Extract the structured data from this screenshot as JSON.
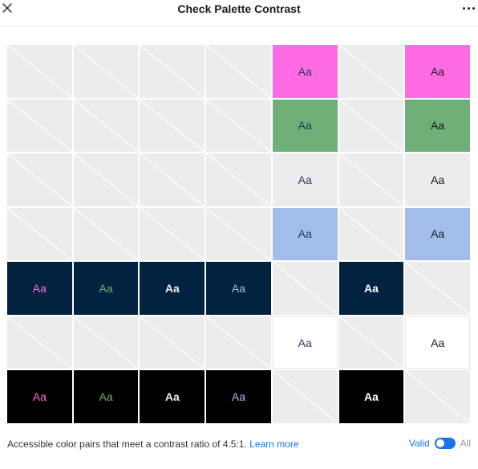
{
  "header": {
    "title": "Check Palette Contrast",
    "close_icon": "close-icon",
    "more_icon": "more-horizontal-icon"
  },
  "grid": {
    "sample_text": "Aa",
    "rows": [
      [
        {
          "empty": true
        },
        {
          "empty": true
        },
        {
          "empty": true
        },
        {
          "empty": true
        },
        {
          "bg": "#ff6be3",
          "fg": "#1e3a5f",
          "text": "Aa"
        },
        {
          "empty": true
        },
        {
          "bg": "#ff6be3",
          "fg": "#1a1a1a",
          "text": "Aa"
        }
      ],
      [
        {
          "empty": true
        },
        {
          "empty": true
        },
        {
          "empty": true
        },
        {
          "empty": true
        },
        {
          "bg": "#6eb077",
          "fg": "#1e3a5f",
          "text": "Aa"
        },
        {
          "empty": true
        },
        {
          "bg": "#6eb077",
          "fg": "#1a1a1a",
          "text": "Aa"
        }
      ],
      [
        {
          "empty": true
        },
        {
          "empty": true
        },
        {
          "empty": true
        },
        {
          "empty": true
        },
        {
          "bg": "#ececec",
          "fg": "#1e3a5f",
          "text": "Aa"
        },
        {
          "empty": true
        },
        {
          "bg": "#ececec",
          "fg": "#1a1a1a",
          "text": "Aa"
        }
      ],
      [
        {
          "empty": true
        },
        {
          "empty": true
        },
        {
          "empty": true
        },
        {
          "empty": true
        },
        {
          "bg": "#a2bdec",
          "fg": "#1e3a5f",
          "text": "Aa"
        },
        {
          "empty": true
        },
        {
          "bg": "#a2bdec",
          "fg": "#1a1a1a",
          "text": "Aa"
        }
      ],
      [
        {
          "bg": "#01233f",
          "fg": "#ff6be3",
          "text": "Aa"
        },
        {
          "bg": "#01233f",
          "fg": "#6eb077",
          "text": "Aa"
        },
        {
          "bg": "#01233f",
          "fg": "#ececec",
          "text": "Aa",
          "bold": true
        },
        {
          "bg": "#01233f",
          "fg": "#a2bdec",
          "text": "Aa"
        },
        {
          "empty": true
        },
        {
          "bg": "#01233f",
          "fg": "#ffffff",
          "text": "Aa",
          "bold": true
        },
        {
          "empty": true
        }
      ],
      [
        {
          "empty": true
        },
        {
          "empty": true
        },
        {
          "empty": true
        },
        {
          "empty": true
        },
        {
          "bg": "#ffffff",
          "fg": "#1e3a5f",
          "text": "Aa",
          "bordered": true
        },
        {
          "empty": true
        },
        {
          "bg": "#ffffff",
          "fg": "#1a1a1a",
          "text": "Aa",
          "bordered": true
        }
      ],
      [
        {
          "bg": "#000000",
          "fg": "#ff6be3",
          "text": "Aa"
        },
        {
          "bg": "#000000",
          "fg": "#6eb077",
          "text": "Aa"
        },
        {
          "bg": "#000000",
          "fg": "#ececec",
          "text": "Aa",
          "bold": true
        },
        {
          "bg": "#000000",
          "fg": "#a2bdec",
          "text": "Aa"
        },
        {
          "empty": true
        },
        {
          "bg": "#000000",
          "fg": "#ffffff",
          "text": "Aa",
          "bold": true
        },
        {
          "empty": true
        }
      ]
    ]
  },
  "footer": {
    "description": "Accessible color pairs that meet a contrast ratio of 4.5:1.",
    "learn_more": "Learn more",
    "toggle_on_label": "Valid",
    "toggle_off_label": "All",
    "toggle_state": "Valid"
  },
  "colors": {
    "accent": "#1a73e8",
    "empty_cell": "#ececec"
  }
}
